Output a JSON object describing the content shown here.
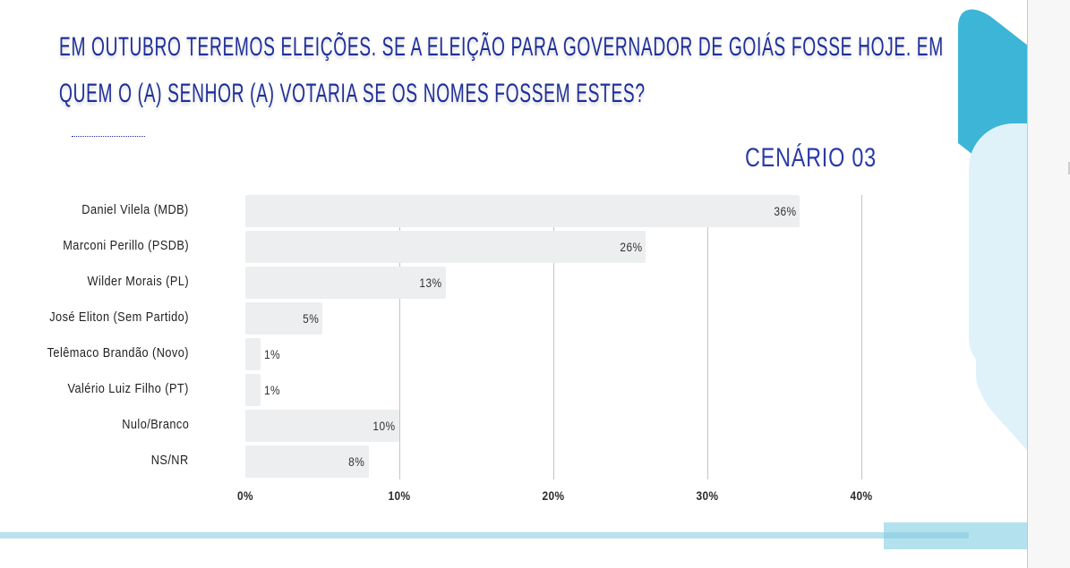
{
  "title": {
    "line1": "EM OUTUBRO TEREMOS ELEIÇÕES. SE A ELEIÇÃO PARA GOVERNADOR DE GOIÁS FOSSE HOJE. EM",
    "line2": "QUEM O (A) SENHOR (A) VOTARIA SE OS NOMES FOSSEM ESTES?"
  },
  "scenario": "CENÁRIO 03",
  "colors": {
    "accent": "#3db5d6",
    "title": "#1e2f9a",
    "bar": "#eceeef"
  },
  "chart_data": {
    "type": "bar",
    "orientation": "horizontal",
    "title": "CENÁRIO 03",
    "categories": [
      "Daniel Vilela (MDB)",
      "Marconi Perillo (PSDB)",
      "Wilder Morais (PL)",
      "José Eliton (Sem Partido)",
      "Telêmaco Brandão (Novo)",
      "Valério Luiz Filho (PT)",
      "Nulo/Branco",
      "NS/NR"
    ],
    "values": [
      36,
      26,
      13,
      5,
      1,
      1,
      10,
      8
    ],
    "value_labels": [
      "36%",
      "26%",
      "13%",
      "5%",
      "1%",
      "1%",
      "10%",
      "8%"
    ],
    "xlim": [
      0,
      40
    ],
    "ticks": [
      0,
      10,
      20,
      30,
      40
    ],
    "tick_labels": [
      "0%",
      "10%",
      "20%",
      "30%",
      "40%"
    ],
    "grid": true,
    "xlabel": "",
    "ylabel": ""
  }
}
